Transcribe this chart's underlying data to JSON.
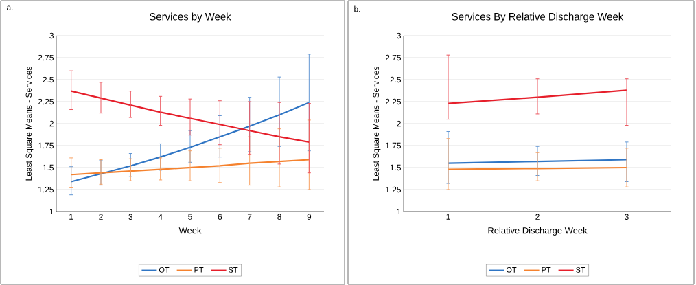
{
  "chart_data": [
    {
      "type": "line",
      "title": "Services by Week",
      "xlabel": "Week",
      "ylabel": "Least Square Means - Services",
      "annotations": [
        "a."
      ],
      "categories": [
        "1",
        "2",
        "3",
        "4",
        "5",
        "6",
        "7",
        "8",
        "9"
      ],
      "series": [
        {
          "name": "OT",
          "color": "#2f75c4",
          "values": [
            1.34,
            1.43,
            1.52,
            1.62,
            1.73,
            1.85,
            1.97,
            2.1,
            2.24
          ],
          "errors": [
            [
              1.19,
              1.51
            ],
            [
              1.3,
              1.58
            ],
            [
              1.4,
              1.66
            ],
            [
              1.47,
              1.77
            ],
            [
              1.56,
              1.92
            ],
            [
              1.62,
              2.09
            ],
            [
              1.68,
              2.3
            ],
            [
              1.74,
              2.53
            ],
            [
              1.69,
              2.79
            ]
          ]
        },
        {
          "name": "PT",
          "color": "#f5822e",
          "values": [
            1.42,
            1.44,
            1.46,
            1.48,
            1.5,
            1.52,
            1.55,
            1.57,
            1.59
          ],
          "errors": [
            [
              1.27,
              1.61
            ],
            [
              1.31,
              1.59
            ],
            [
              1.35,
              1.6
            ],
            [
              1.36,
              1.61
            ],
            [
              1.35,
              1.69
            ],
            [
              1.33,
              1.72
            ],
            [
              1.3,
              1.85
            ],
            [
              1.28,
              1.94
            ],
            [
              1.25,
              2.04
            ]
          ]
        },
        {
          "name": "ST",
          "color": "#e61e2a",
          "values": [
            2.37,
            2.29,
            2.21,
            2.13,
            2.06,
            1.99,
            1.92,
            1.85,
            1.79
          ],
          "errors": [
            [
              2.16,
              2.6
            ],
            [
              2.12,
              2.47
            ],
            [
              2.07,
              2.37
            ],
            [
              1.98,
              2.31
            ],
            [
              1.87,
              2.28
            ],
            [
              1.76,
              2.26
            ],
            [
              1.65,
              2.25
            ],
            [
              1.54,
              2.24
            ],
            [
              1.44,
              2.23
            ]
          ]
        }
      ],
      "ylim": [
        1,
        3
      ],
      "yticks": [
        1,
        1.25,
        1.5,
        1.75,
        2,
        2.25,
        2.5,
        2.75,
        3
      ],
      "grid": "y",
      "legend": "bottom",
      "marker": "none",
      "line_style": "solid"
    },
    {
      "type": "line",
      "title": "Services By Relative Discharge Week",
      "xlabel": "Relative Discharge Week",
      "ylabel": "Least Square Means - Services",
      "annotations": [
        "b."
      ],
      "categories": [
        "1",
        "2",
        "3"
      ],
      "series": [
        {
          "name": "OT",
          "color": "#2f75c4",
          "values": [
            1.55,
            1.57,
            1.59
          ],
          "errors": [
            [
              1.32,
              1.91
            ],
            [
              1.41,
              1.74
            ],
            [
              1.34,
              1.79
            ]
          ]
        },
        {
          "name": "PT",
          "color": "#f5822e",
          "values": [
            1.48,
            1.49,
            1.5
          ],
          "errors": [
            [
              1.25,
              1.83
            ],
            [
              1.35,
              1.67
            ],
            [
              1.28,
              1.72
            ]
          ]
        },
        {
          "name": "ST",
          "color": "#e61e2a",
          "values": [
            2.23,
            2.3,
            2.38
          ],
          "errors": [
            [
              2.05,
              2.78
            ],
            [
              2.11,
              2.51
            ],
            [
              1.98,
              2.51
            ]
          ]
        }
      ],
      "ylim": [
        1,
        3
      ],
      "yticks": [
        1,
        1.25,
        1.5,
        1.75,
        2,
        2.25,
        2.5,
        2.75,
        3
      ],
      "grid": "y",
      "legend": "bottom",
      "marker": "none",
      "line_style": "solid"
    }
  ]
}
